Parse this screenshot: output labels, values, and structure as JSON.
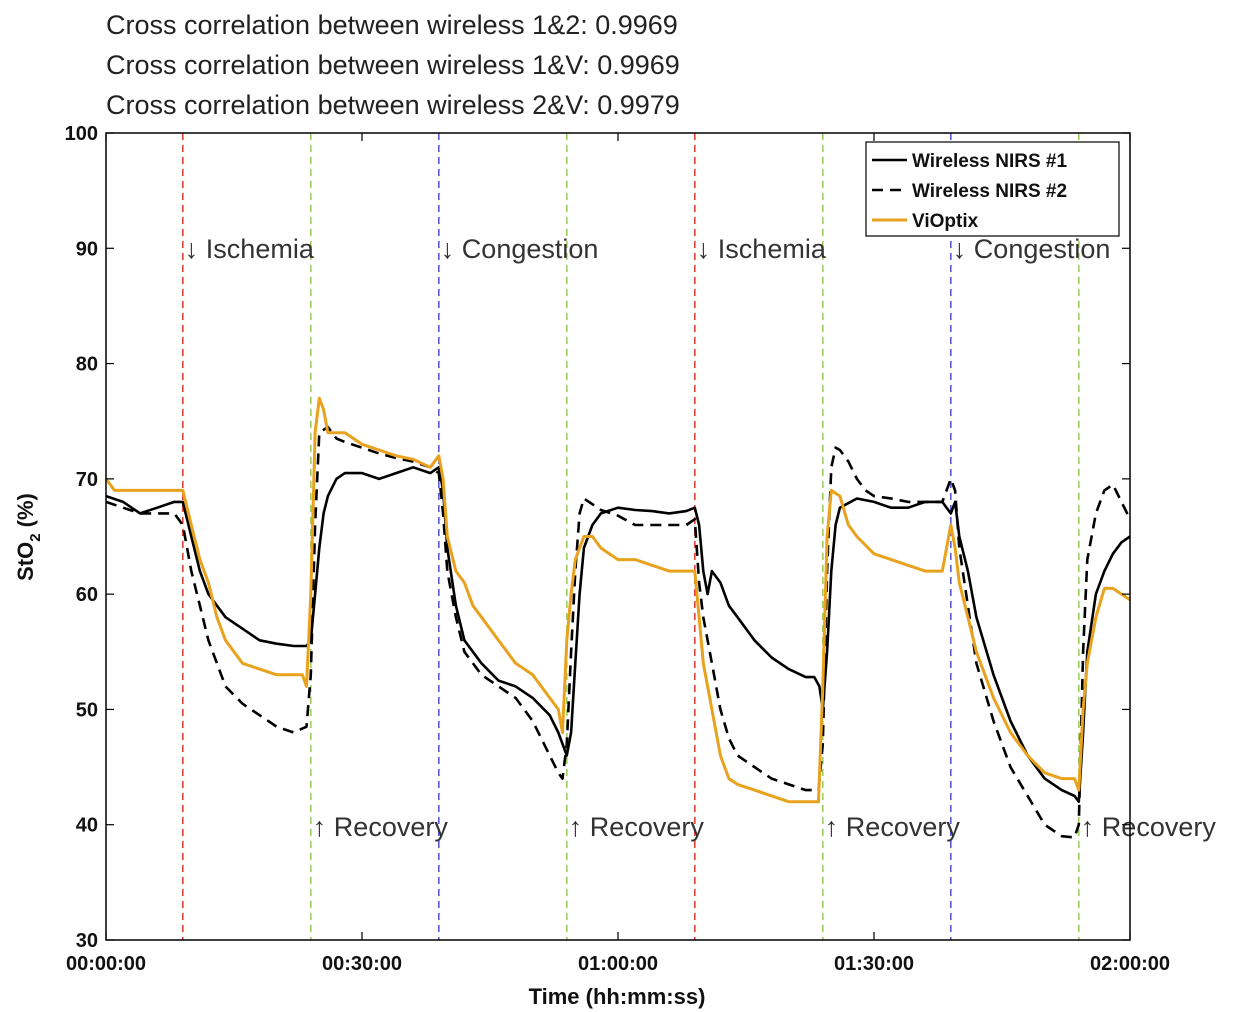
{
  "chart_data": {
    "type": "line",
    "header_lines": [
      "Cross correlation between wireless 1&2: 0.9969",
      "Cross correlation between wireless 1&V: 0.9969",
      "Cross correlation between wireless 2&V: 0.9979"
    ],
    "xlabel": "Time (hh:mm:ss)",
    "ylabel_main": "StO",
    "ylabel_sub": "2",
    "ylabel_unit": " (%)",
    "xlim": [
      0,
      120
    ],
    "ylim": [
      30,
      100
    ],
    "x_ticks": [
      {
        "value": 0,
        "label": "00:00:00"
      },
      {
        "value": 30,
        "label": "00:30:00"
      },
      {
        "value": 60,
        "label": "01:00:00"
      },
      {
        "value": 90,
        "label": "01:30:00"
      },
      {
        "value": 120,
        "label": "02:00:00"
      }
    ],
    "y_ticks": [
      30,
      40,
      50,
      60,
      70,
      80,
      90,
      100
    ],
    "legend": {
      "position": "top-right",
      "entries": [
        "Wireless NIRS #1",
        "Wireless NIRS #2",
        "ViOptix"
      ]
    },
    "events": [
      {
        "x": 9,
        "label": "↓ Ischemia",
        "color": "#e8423a",
        "label_at": "top"
      },
      {
        "x": 24,
        "label": "↑ Recovery",
        "color": "#9fcc5e",
        "label_at": "bottom"
      },
      {
        "x": 39,
        "label": "↓ Congestion",
        "color": "#5b5bd6",
        "label_at": "top"
      },
      {
        "x": 54,
        "label": "↑ Recovery",
        "color": "#9fcc5e",
        "label_at": "bottom"
      },
      {
        "x": 69,
        "label": "↓ Ischemia",
        "color": "#e8423a",
        "label_at": "top"
      },
      {
        "x": 84,
        "label": "↑ Recovery",
        "color": "#9fcc5e",
        "label_at": "bottom"
      },
      {
        "x": 99,
        "label": "↓ Congestion",
        "color": "#5b5bd6",
        "label_at": "top"
      },
      {
        "x": 114,
        "label": "↑ Recovery",
        "color": "#9fcc5e",
        "label_at": "bottom"
      }
    ],
    "series": [
      {
        "name": "Wireless NIRS #1",
        "color": "#000000",
        "dash": "",
        "points": [
          [
            0,
            68.5
          ],
          [
            2,
            68
          ],
          [
            4,
            67
          ],
          [
            6,
            67.5
          ],
          [
            8,
            68
          ],
          [
            9,
            68
          ],
          [
            10,
            65
          ],
          [
            11,
            62
          ],
          [
            12,
            60
          ],
          [
            14,
            58
          ],
          [
            16,
            57
          ],
          [
            18,
            56
          ],
          [
            20,
            55.7
          ],
          [
            22,
            55.5
          ],
          [
            23.5,
            55.5
          ],
          [
            24,
            56
          ],
          [
            24.5,
            60
          ],
          [
            25,
            64
          ],
          [
            25.5,
            67
          ],
          [
            26,
            68.5
          ],
          [
            27,
            70
          ],
          [
            28,
            70.5
          ],
          [
            30,
            70.5
          ],
          [
            32,
            70
          ],
          [
            34,
            70.5
          ],
          [
            36,
            71
          ],
          [
            38,
            70.5
          ],
          [
            39,
            71
          ],
          [
            39.5,
            69
          ],
          [
            40,
            64
          ],
          [
            41,
            59
          ],
          [
            42,
            56
          ],
          [
            43,
            55
          ],
          [
            44,
            54
          ],
          [
            46,
            52.5
          ],
          [
            48,
            52
          ],
          [
            50,
            51
          ],
          [
            52,
            49.5
          ],
          [
            53,
            48
          ],
          [
            54,
            46
          ],
          [
            54.5,
            48
          ],
          [
            55,
            54
          ],
          [
            55.5,
            60
          ],
          [
            56,
            64
          ],
          [
            57,
            66
          ],
          [
            58,
            67
          ],
          [
            60,
            67.5
          ],
          [
            62,
            67.3
          ],
          [
            64,
            67.2
          ],
          [
            66,
            67
          ],
          [
            68,
            67.2
          ],
          [
            69,
            67.5
          ],
          [
            69.5,
            66
          ],
          [
            70,
            62
          ],
          [
            70.5,
            60
          ],
          [
            71,
            62
          ],
          [
            72,
            61
          ],
          [
            73,
            59
          ],
          [
            74,
            58
          ],
          [
            76,
            56
          ],
          [
            78,
            54.5
          ],
          [
            80,
            53.5
          ],
          [
            82,
            52.8
          ],
          [
            83,
            52.8
          ],
          [
            83.6,
            52
          ],
          [
            84,
            50
          ],
          [
            84.5,
            55
          ],
          [
            85,
            62
          ],
          [
            85.5,
            66
          ],
          [
            86,
            67.5
          ],
          [
            88,
            68.3
          ],
          [
            90,
            68
          ],
          [
            92,
            67.5
          ],
          [
            94,
            67.5
          ],
          [
            96,
            68
          ],
          [
            98,
            68
          ],
          [
            99,
            67
          ],
          [
            99.5,
            68
          ],
          [
            100,
            65
          ],
          [
            101,
            62
          ],
          [
            102,
            58
          ],
          [
            104,
            53
          ],
          [
            106,
            49
          ],
          [
            108,
            46
          ],
          [
            110,
            44
          ],
          [
            112,
            43
          ],
          [
            113.5,
            42.5
          ],
          [
            114,
            42
          ],
          [
            114.5,
            48
          ],
          [
            115,
            55
          ],
          [
            116,
            60
          ],
          [
            117,
            62
          ],
          [
            118,
            63.5
          ],
          [
            119,
            64.5
          ],
          [
            120,
            65
          ]
        ]
      },
      {
        "name": "Wireless NIRS #2",
        "color": "#000000",
        "dash": "11,7",
        "points": [
          [
            0,
            68
          ],
          [
            2,
            67.5
          ],
          [
            4,
            67
          ],
          [
            6,
            67
          ],
          [
            8,
            67
          ],
          [
            9,
            66
          ],
          [
            9.5,
            64
          ],
          [
            10,
            62
          ],
          [
            11,
            59
          ],
          [
            12,
            56
          ],
          [
            14,
            52
          ],
          [
            16,
            50.5
          ],
          [
            18,
            49.5
          ],
          [
            20,
            48.5
          ],
          [
            22,
            48
          ],
          [
            23.5,
            48.5
          ],
          [
            24,
            53
          ],
          [
            24.5,
            66
          ],
          [
            25,
            74
          ],
          [
            26,
            74.5
          ],
          [
            27,
            73.5
          ],
          [
            28,
            73.2
          ],
          [
            30,
            72.7
          ],
          [
            32,
            72.2
          ],
          [
            34,
            71.8
          ],
          [
            36,
            71.5
          ],
          [
            38,
            71
          ],
          [
            39,
            70.5
          ],
          [
            39.5,
            67
          ],
          [
            40,
            62
          ],
          [
            41,
            58
          ],
          [
            42,
            55
          ],
          [
            44,
            53
          ],
          [
            46,
            52
          ],
          [
            48,
            51
          ],
          [
            50,
            49
          ],
          [
            52,
            46
          ],
          [
            53,
            44.5
          ],
          [
            53.5,
            44
          ],
          [
            54,
            47
          ],
          [
            54.5,
            55
          ],
          [
            55,
            62
          ],
          [
            55.5,
            67
          ],
          [
            56,
            68.3
          ],
          [
            58,
            67.3
          ],
          [
            60,
            66.8
          ],
          [
            62,
            66
          ],
          [
            64,
            66
          ],
          [
            66,
            66
          ],
          [
            68,
            66
          ],
          [
            69,
            66.5
          ],
          [
            69.5,
            61
          ],
          [
            70,
            58
          ],
          [
            71,
            54
          ],
          [
            72,
            50
          ],
          [
            73,
            47.5
          ],
          [
            74,
            46
          ],
          [
            76,
            45
          ],
          [
            78,
            44
          ],
          [
            80,
            43.5
          ],
          [
            82,
            43
          ],
          [
            83.5,
            43
          ],
          [
            84,
            47
          ],
          [
            84.5,
            62
          ],
          [
            85,
            71
          ],
          [
            85.5,
            72.7
          ],
          [
            86,
            72.5
          ],
          [
            87,
            71.5
          ],
          [
            88,
            70
          ],
          [
            89,
            69
          ],
          [
            90,
            68.5
          ],
          [
            92,
            68.3
          ],
          [
            94,
            68
          ],
          [
            96,
            68
          ],
          [
            98,
            68
          ],
          [
            99,
            70
          ],
          [
            99.5,
            69
          ],
          [
            100,
            64
          ],
          [
            101,
            59
          ],
          [
            102,
            54
          ],
          [
            104,
            49
          ],
          [
            106,
            45
          ],
          [
            108,
            42.5
          ],
          [
            110,
            40
          ],
          [
            112,
            39
          ],
          [
            113.5,
            38.9
          ],
          [
            114,
            40
          ],
          [
            114.5,
            55
          ],
          [
            115,
            63
          ],
          [
            116,
            67
          ],
          [
            117,
            69
          ],
          [
            118,
            69.5
          ],
          [
            119,
            68
          ],
          [
            120,
            66.5
          ]
        ]
      },
      {
        "name": "ViOptix",
        "color": "#e8a21e",
        "dash": "",
        "points": [
          [
            0,
            70
          ],
          [
            1,
            69
          ],
          [
            3,
            69
          ],
          [
            5,
            69
          ],
          [
            7,
            69
          ],
          [
            8,
            69
          ],
          [
            9,
            69
          ],
          [
            10,
            66
          ],
          [
            11,
            63
          ],
          [
            12,
            61
          ],
          [
            13,
            58
          ],
          [
            14,
            56
          ],
          [
            15,
            55
          ],
          [
            16,
            54
          ],
          [
            18,
            53.5
          ],
          [
            20,
            53
          ],
          [
            22,
            53
          ],
          [
            23,
            53
          ],
          [
            23.5,
            52
          ],
          [
            24,
            60
          ],
          [
            24.5,
            74
          ],
          [
            25,
            77
          ],
          [
            25.5,
            76
          ],
          [
            26,
            74
          ],
          [
            28,
            74
          ],
          [
            30,
            73
          ],
          [
            32,
            72.5
          ],
          [
            34,
            72
          ],
          [
            36,
            71.7
          ],
          [
            38,
            71
          ],
          [
            39,
            72
          ],
          [
            39.5,
            70
          ],
          [
            40,
            65
          ],
          [
            41,
            62
          ],
          [
            42,
            61
          ],
          [
            43,
            59
          ],
          [
            44,
            58
          ],
          [
            46,
            56
          ],
          [
            48,
            54
          ],
          [
            50,
            53
          ],
          [
            52,
            51
          ],
          [
            53,
            50
          ],
          [
            53.5,
            48
          ],
          [
            54,
            56
          ],
          [
            54.5,
            60
          ],
          [
            55,
            63
          ],
          [
            56,
            65
          ],
          [
            57,
            65
          ],
          [
            58,
            64
          ],
          [
            60,
            63
          ],
          [
            62,
            63
          ],
          [
            64,
            62.5
          ],
          [
            66,
            62
          ],
          [
            68,
            62
          ],
          [
            69,
            62
          ],
          [
            69.5,
            58
          ],
          [
            70,
            54
          ],
          [
            71,
            50
          ],
          [
            72,
            46
          ],
          [
            73,
            44
          ],
          [
            74,
            43.5
          ],
          [
            76,
            43
          ],
          [
            78,
            42.5
          ],
          [
            80,
            42
          ],
          [
            82,
            42
          ],
          [
            83.5,
            42
          ],
          [
            84,
            52
          ],
          [
            84.5,
            65
          ],
          [
            85,
            69
          ],
          [
            86,
            68.5
          ],
          [
            87,
            66
          ],
          [
            88,
            65
          ],
          [
            90,
            63.5
          ],
          [
            92,
            63
          ],
          [
            94,
            62.5
          ],
          [
            96,
            62
          ],
          [
            98,
            62
          ],
          [
            99,
            66
          ],
          [
            99.5,
            64
          ],
          [
            100,
            61
          ],
          [
            101,
            58
          ],
          [
            102,
            55
          ],
          [
            104,
            51
          ],
          [
            106,
            48
          ],
          [
            108,
            46
          ],
          [
            110,
            44.5
          ],
          [
            112,
            44
          ],
          [
            113.5,
            44
          ],
          [
            114,
            43
          ],
          [
            114.5,
            50
          ],
          [
            115,
            54
          ],
          [
            116,
            58
          ],
          [
            117,
            60.5
          ],
          [
            118,
            60.5
          ],
          [
            119,
            60
          ],
          [
            120,
            59.5
          ]
        ]
      }
    ]
  }
}
